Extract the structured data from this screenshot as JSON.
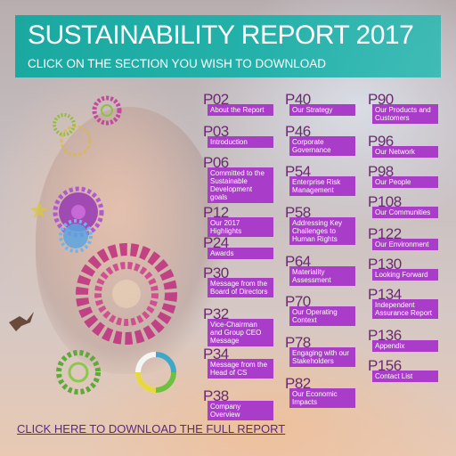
{
  "header": {
    "title": "SUSTAINABILITY REPORT 2017",
    "subtitle": "CLICK ON THE SECTION YOU WISH TO DOWNLOAD"
  },
  "sections": [
    {
      "page": "P02",
      "label": "About the Report"
    },
    {
      "page": "P03",
      "label": "Introduction"
    },
    {
      "page": "P06",
      "label": "Committed to the Sustainable Development goals"
    },
    {
      "page": "P12",
      "label": "Our 2017 Highlights"
    },
    {
      "page": "P24",
      "label": "Awards"
    },
    {
      "page": "P30",
      "label": "Message from the Board of Directors"
    },
    {
      "page": "P32",
      "label": "Vice-Chairman and Group CEO Message"
    },
    {
      "page": "P34",
      "label": "Message from the Head of CS"
    },
    {
      "page": "P38",
      "label": "Company Overview"
    },
    {
      "page": "P40",
      "label": "Our Strategy"
    },
    {
      "page": "P46",
      "label": "Corporate Governance"
    },
    {
      "page": "P54",
      "label": "Enterprise Risk Management"
    },
    {
      "page": "P58",
      "label": "Addressing Key Challenges to Human Rights"
    },
    {
      "page": "P64",
      "label": "Materiality Assessment"
    },
    {
      "page": "P70",
      "label": "Our Operating Context"
    },
    {
      "page": "P78",
      "label": "Engaging with our Stakeholders"
    },
    {
      "page": "P82",
      "label": "Our Economic Impacts"
    },
    {
      "page": "P90",
      "label": "Our Products and Customers"
    },
    {
      "page": "P96",
      "label": "Our Network"
    },
    {
      "page": "P98",
      "label": "Our People"
    },
    {
      "page": "P108",
      "label": "Our Communities"
    },
    {
      "page": "P122",
      "label": "Our Environment"
    },
    {
      "page": "P130",
      "label": "Looking Forward"
    },
    {
      "page": "P134",
      "label": "Independent Assurance Report"
    },
    {
      "page": "P136",
      "label": "Appendix"
    },
    {
      "page": "P156",
      "label": "Contact List"
    }
  ],
  "footer": {
    "download_full": "CLICK HERE TO DOWNLOAD THE FULL REPORT"
  },
  "colors": {
    "header_bg": "#1aa9a1",
    "label_bg": "#a93cc8",
    "page_number": "#6a2a70"
  }
}
